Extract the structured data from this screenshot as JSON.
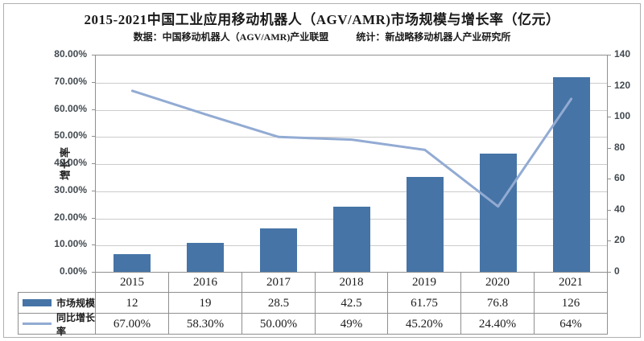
{
  "chart_data": {
    "type": "bar+line",
    "title": "2015-2021中国工业应用移动机器人（AGV/AMR)市场规模与增长率（亿元）",
    "source_note": "数据：中国移动机器人（AGV/AMR)产业联盟",
    "stat_note": "统计：新战略移动机器人产业研究所",
    "categories": [
      "2015",
      "2016",
      "2017",
      "2018",
      "2019",
      "2020",
      "2021"
    ],
    "series": [
      {
        "name": "市场规模",
        "type": "bar",
        "axis": "right",
        "values": [
          12,
          19,
          28.5,
          42.5,
          61.75,
          76.8,
          126
        ],
        "display": [
          "12",
          "19",
          "28.5",
          "42.5",
          "61.75",
          "76.8",
          "126"
        ],
        "color": "#4674A6"
      },
      {
        "name": "同比增长率",
        "type": "line",
        "axis": "left",
        "values": [
          67.0,
          58.3,
          50.0,
          49.0,
          45.2,
          24.4,
          64.0
        ],
        "display": [
          "67.00%",
          "58.30%",
          "50.00%",
          "49%",
          "45.20%",
          "24.40%",
          "64%"
        ],
        "color": "#92ABD3"
      }
    ],
    "left_axis": {
      "label": "增长率",
      "min": 0,
      "max": 80,
      "step": 10,
      "tick_format": "0.00%"
    },
    "right_axis": {
      "min": 0,
      "max": 140,
      "step": 20
    },
    "grid": "horizontal",
    "legend_position": "table-left"
  }
}
